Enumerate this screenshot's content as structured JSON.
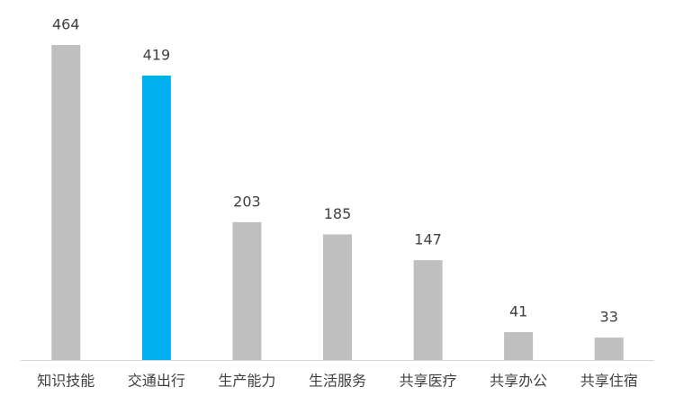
{
  "chart_data": {
    "type": "bar",
    "categories": [
      "知识技能",
      "交通出行",
      "生产能力",
      "生活服务",
      "共享医疗",
      "共享办公",
      "共享住宿"
    ],
    "values": [
      464,
      419,
      203,
      185,
      147,
      41,
      33
    ],
    "colors": [
      "#bfbfbf",
      "#00b0f0",
      "#bfbfbf",
      "#bfbfbf",
      "#bfbfbf",
      "#bfbfbf",
      "#bfbfbf"
    ],
    "data_labels": true
  }
}
